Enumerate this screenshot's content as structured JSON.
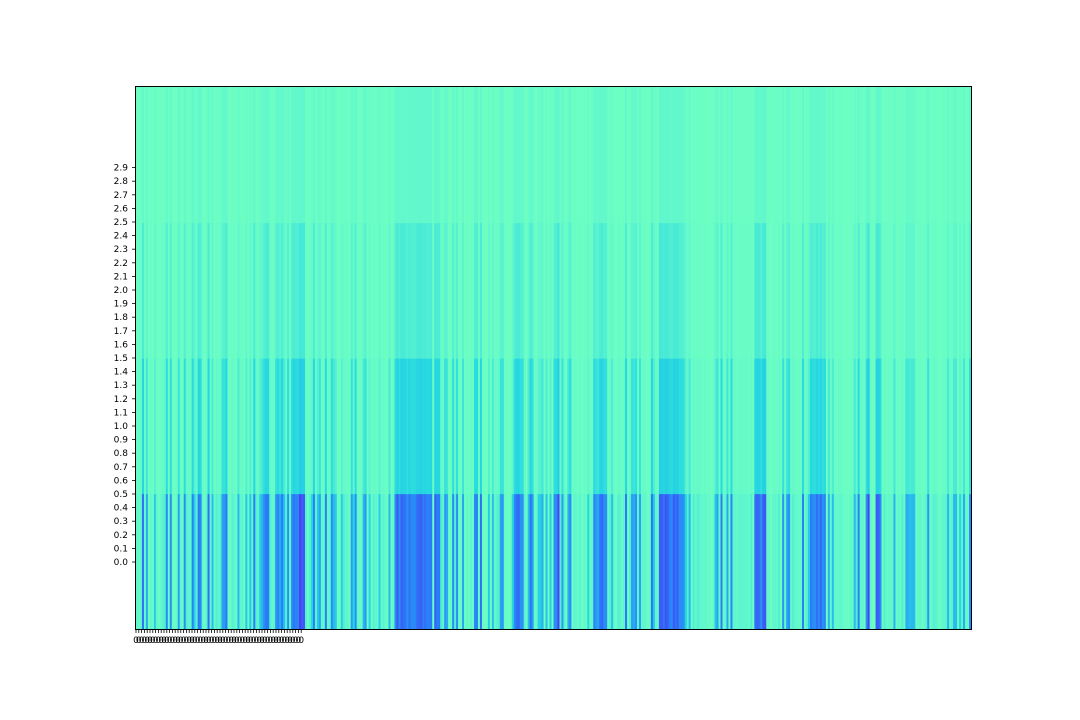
{
  "chart_data": {
    "type": "heatmap",
    "title": "",
    "xlabel": "",
    "ylabel": "",
    "colormap": "rainbow",
    "num_columns": 420,
    "rows": 4,
    "value_range": [
      0,
      1
    ],
    "yticks": [
      "0.0",
      "0.1",
      "0.2",
      "0.3",
      "0.4",
      "0.5",
      "0.6",
      "0.7",
      "0.8",
      "0.9",
      "1.0",
      "1.1",
      "1.2",
      "1.3",
      "1.4",
      "1.5",
      "1.6",
      "1.7",
      "1.8",
      "1.9",
      "2.0",
      "2.1",
      "2.2",
      "2.3",
      "2.4",
      "2.5",
      "2.6",
      "2.7",
      "2.8",
      "2.9"
    ],
    "xtick_count": 60,
    "xtick_label": "0",
    "row_levels": [
      0.27,
      0.36,
      0.42,
      0.45
    ],
    "dark_column_fraction": 0.35,
    "grid": false,
    "legend": "none"
  },
  "colors": {
    "lightest": "#6dffc2",
    "light": "#5ef5cf",
    "cyan": "#26d9e0",
    "sky": "#2ab8ee",
    "blue": "#2a7bf8",
    "violet": "#5a2af0",
    "frame": "#000000",
    "background": "#ffffff"
  }
}
